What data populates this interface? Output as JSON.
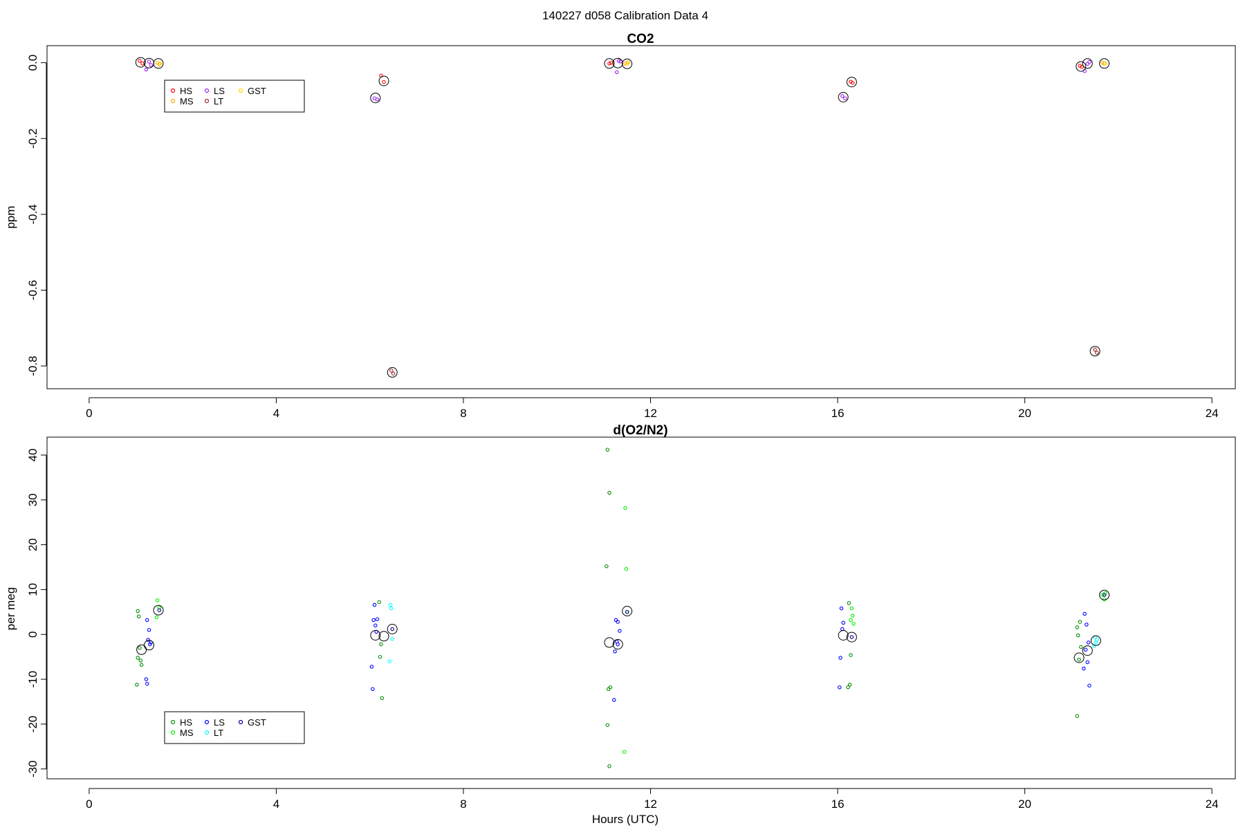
{
  "page_title": "140227   d058   Calibration Data 4",
  "chart_data": [
    {
      "type": "scatter",
      "title": "CO2",
      "xlabel": "",
      "ylabel": "ppm",
      "xlim": [
        -0.9,
        24.5
      ],
      "ylim": [
        -0.86,
        0.045
      ],
      "x_ticks": [
        0,
        4,
        8,
        12,
        16,
        20,
        24
      ],
      "y_ticks": [
        0.0,
        -0.2,
        -0.4,
        -0.6,
        -0.8
      ],
      "y_tick_labels": [
        "0.0",
        "-0.2",
        "-0.4",
        "-0.6",
        "-0.8"
      ],
      "y_tick_rotation": "vertical",
      "legend": {
        "position": "top-left",
        "entries": [
          {
            "name": "HS",
            "color": "#ff0000"
          },
          {
            "name": "MS",
            "color": "#ffa500"
          },
          {
            "name": "LS",
            "color": "#a020f0"
          },
          {
            "name": "LT",
            "color": "#a52a2a"
          },
          {
            "name": "GST",
            "color": "#ffd700"
          }
        ]
      },
      "series": [
        {
          "name": "HS",
          "color": "#ff0000",
          "x": [
            1.08,
            1.14,
            6.24,
            6.3,
            11.12,
            11.16,
            16.28,
            16.32,
            21.18,
            21.22
          ],
          "y": [
            0.005,
            -0.002,
            -0.034,
            -0.051,
            -0.002,
            0.0,
            -0.05,
            -0.053,
            -0.008,
            -0.011
          ]
        },
        {
          "name": "MS",
          "color": "#ffa500",
          "x": [
            1.46,
            1.5,
            11.46,
            11.52,
            21.66,
            21.7
          ],
          "y": [
            0.0,
            -0.004,
            -0.002,
            0.001,
            0.0,
            -0.002
          ]
        },
        {
          "name": "LS",
          "color": "#a020f0",
          "x": [
            1.22,
            1.28,
            1.32,
            6.1,
            6.16,
            11.28,
            11.32,
            11.36,
            16.1,
            16.16,
            21.28,
            21.34,
            21.38
          ],
          "y": [
            -0.018,
            0.003,
            -0.006,
            -0.094,
            -0.097,
            -0.025,
            0.005,
            0.003,
            -0.088,
            -0.094,
            -0.022,
            -0.003,
            0.002
          ]
        },
        {
          "name": "LT",
          "color": "#a52a2a",
          "x": [
            6.46,
            6.5,
            21.5,
            21.54
          ],
          "y": [
            -0.812,
            -0.82,
            -0.757,
            -0.765
          ]
        },
        {
          "name": "GST",
          "color": "#ffd700",
          "x": [
            1.52,
            11.5,
            21.72
          ],
          "y": [
            -0.002,
            -0.003,
            -0.002
          ]
        },
        {
          "name": "mean",
          "color": "#000000",
          "x": [
            1.1,
            1.28,
            1.48,
            6.12,
            6.3,
            6.48,
            11.12,
            11.3,
            11.5,
            16.12,
            16.3,
            21.2,
            21.34,
            21.5,
            21.7
          ],
          "y": [
            0.001,
            -0.001,
            -0.002,
            -0.093,
            -0.048,
            -0.817,
            -0.002,
            -0.001,
            -0.003,
            -0.091,
            -0.051,
            -0.01,
            -0.002,
            -0.761,
            -0.002
          ]
        }
      ]
    },
    {
      "type": "scatter",
      "title": "d(O2/N2)",
      "xlabel": "Hours (UTC)",
      "ylabel": "per meg",
      "xlim": [
        -0.9,
        24.5
      ],
      "ylim": [
        -32.2,
        44
      ],
      "x_ticks": [
        0,
        4,
        8,
        12,
        16,
        20,
        24
      ],
      "y_ticks": [
        40,
        30,
        20,
        10,
        0,
        -10,
        -20,
        -30
      ],
      "y_tick_labels": [
        "40",
        "30",
        "20",
        "10",
        "0",
        "-10",
        "-20",
        "-30"
      ],
      "y_tick_rotation": "vertical",
      "legend": {
        "position": "bottom-left",
        "entries": [
          {
            "name": "HS",
            "color": "#008b00"
          },
          {
            "name": "MS",
            "color": "#00ee00"
          },
          {
            "name": "LS",
            "color": "#0000ff"
          },
          {
            "name": "LT",
            "color": "#00ffff"
          },
          {
            "name": "GST",
            "color": "#00008b"
          }
        ]
      },
      "series": [
        {
          "name": "HS",
          "color": "#008b00",
          "x": [
            1.04,
            1.06,
            1.08,
            1.02,
            1.1,
            1.12,
            1.04,
            6.2,
            6.24,
            6.22,
            6.26,
            11.08,
            11.12,
            11.06,
            11.1,
            11.14,
            11.08,
            11.12,
            16.24,
            16.28,
            16.26,
            16.22,
            21.12,
            21.14,
            21.18,
            21.2,
            21.16,
            21.12
          ],
          "y": [
            5.2,
            4.0,
            -3.0,
            -11.2,
            -5.8,
            -6.8,
            -5.2,
            7.2,
            -2.2,
            -5.0,
            -14.2,
            41.2,
            31.6,
            15.2,
            -12.2,
            -11.8,
            -20.2,
            -29.4,
            7.0,
            -4.6,
            -11.2,
            -11.8,
            1.6,
            -0.2,
            2.8,
            -2.8,
            -5.6,
            -18.2
          ]
        },
        {
          "name": "MS",
          "color": "#00ee00",
          "x": [
            1.46,
            1.5,
            1.44,
            11.46,
            11.48,
            11.5,
            11.44,
            16.3,
            16.32,
            16.28,
            16.34,
            21.66,
            21.7,
            21.72
          ],
          "y": [
            7.6,
            6.0,
            3.8,
            28.2,
            14.6,
            5.0,
            -26.2,
            5.8,
            4.2,
            3.2,
            2.4,
            8.8,
            7.8,
            9.2
          ]
        },
        {
          "name": "LS",
          "color": "#0000ff",
          "x": [
            1.24,
            1.28,
            1.32,
            1.26,
            1.3,
            1.22,
            1.24,
            6.08,
            6.12,
            6.16,
            6.1,
            6.14,
            6.04,
            6.06,
            11.26,
            11.3,
            11.34,
            11.28,
            11.24,
            11.22,
            11.3,
            16.08,
            16.12,
            16.1,
            16.06,
            16.04,
            21.28,
            21.32,
            21.36,
            21.3,
            21.26,
            21.34,
            21.38
          ],
          "y": [
            3.2,
            1.0,
            -1.8,
            -1.2,
            -2.2,
            -10.0,
            -11.0,
            3.2,
            2.0,
            3.4,
            6.6,
            0.6,
            -7.2,
            -12.2,
            3.2,
            2.8,
            0.8,
            -1.6,
            -3.8,
            -14.6,
            -2.2,
            5.8,
            2.6,
            1.2,
            -5.2,
            -11.8,
            4.6,
            2.2,
            -1.8,
            -3.4,
            -7.6,
            -6.2,
            -11.4
          ]
        },
        {
          "name": "LT",
          "color": "#00ffff",
          "x": [
            6.44,
            6.46,
            6.48,
            6.42,
            21.5,
            21.52,
            21.48,
            21.54
          ],
          "y": [
            6.6,
            5.8,
            -1.0,
            -6.0,
            -0.6,
            -1.8,
            -2.6,
            -1.2
          ]
        },
        {
          "name": "GST",
          "color": "#00008b",
          "x": [
            1.5,
            6.48,
            11.5,
            16.3,
            21.7
          ],
          "y": [
            5.4,
            1.2,
            5.0,
            -0.6,
            8.8
          ]
        },
        {
          "name": "mean",
          "color": "#000000",
          "x": [
            1.12,
            1.28,
            1.48,
            6.12,
            6.3,
            6.48,
            11.12,
            11.3,
            11.5,
            16.12,
            16.3,
            21.16,
            21.34,
            21.52,
            21.7
          ],
          "y": [
            -3.4,
            -2.4,
            5.4,
            -0.2,
            -0.4,
            1.2,
            -1.8,
            -2.2,
            5.2,
            -0.2,
            -0.6,
            -5.2,
            -3.6,
            -1.4,
            8.8
          ]
        }
      ]
    }
  ]
}
